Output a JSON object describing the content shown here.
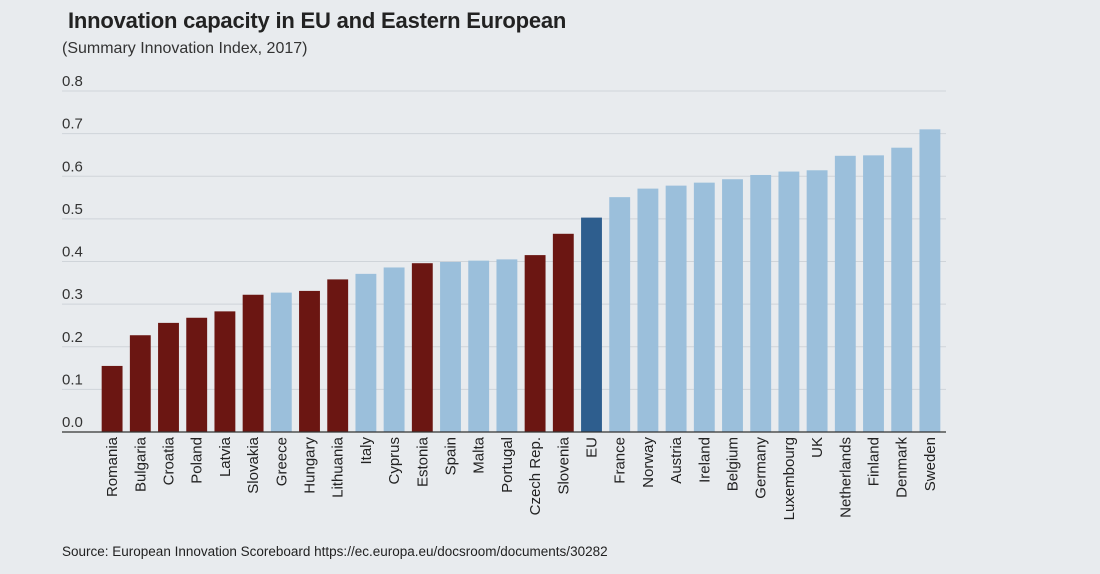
{
  "chart_data": {
    "type": "bar",
    "title": "Innovation capacity in EU and Eastern European",
    "subtitle": "(Summary Innovation Index, 2017)",
    "source": "Source: European Innovation Scoreboard https://ec.europa.eu/docsroom/documents/30282",
    "xlabel": "",
    "ylabel": "",
    "ylim": [
      0,
      0.8
    ],
    "yticks": [
      "0.0",
      "0.1",
      "0.2",
      "0.3",
      "0.4",
      "0.5",
      "0.6",
      "0.7",
      "0.8"
    ],
    "grid": true,
    "colors": {
      "eastern": "#6b1612",
      "eu": "#2e5e8e",
      "other": "#9bbfdb"
    },
    "categories": [
      "Romania",
      "Bulgaria",
      "Croatia",
      "Poland",
      "Latvia",
      "Slovakia",
      "Greece",
      "Hungary",
      "Lithuania",
      "Italy",
      "Cyprus",
      "Estonia",
      "Spain",
      "Malta",
      "Portugal",
      "Czech Rep.",
      "Slovenia",
      "EU",
      "France",
      "Norway",
      "Austria",
      "Ireland",
      "Belgium",
      "Germany",
      "Luxembourg",
      "UK",
      "Netherlands",
      "Finland",
      "Denmark",
      "Sweden"
    ],
    "values": [
      0.155,
      0.227,
      0.256,
      0.268,
      0.283,
      0.322,
      0.327,
      0.331,
      0.358,
      0.371,
      0.386,
      0.396,
      0.399,
      0.402,
      0.405,
      0.415,
      0.465,
      0.503,
      0.551,
      0.571,
      0.578,
      0.585,
      0.593,
      0.603,
      0.611,
      0.614,
      0.648,
      0.649,
      0.667,
      0.71
    ],
    "groups": [
      "eastern",
      "eastern",
      "eastern",
      "eastern",
      "eastern",
      "eastern",
      "other",
      "eastern",
      "eastern",
      "other",
      "other",
      "eastern",
      "other",
      "other",
      "other",
      "eastern",
      "eastern",
      "eu",
      "other",
      "other",
      "other",
      "other",
      "other",
      "other",
      "other",
      "other",
      "other",
      "other",
      "other",
      "other"
    ]
  }
}
